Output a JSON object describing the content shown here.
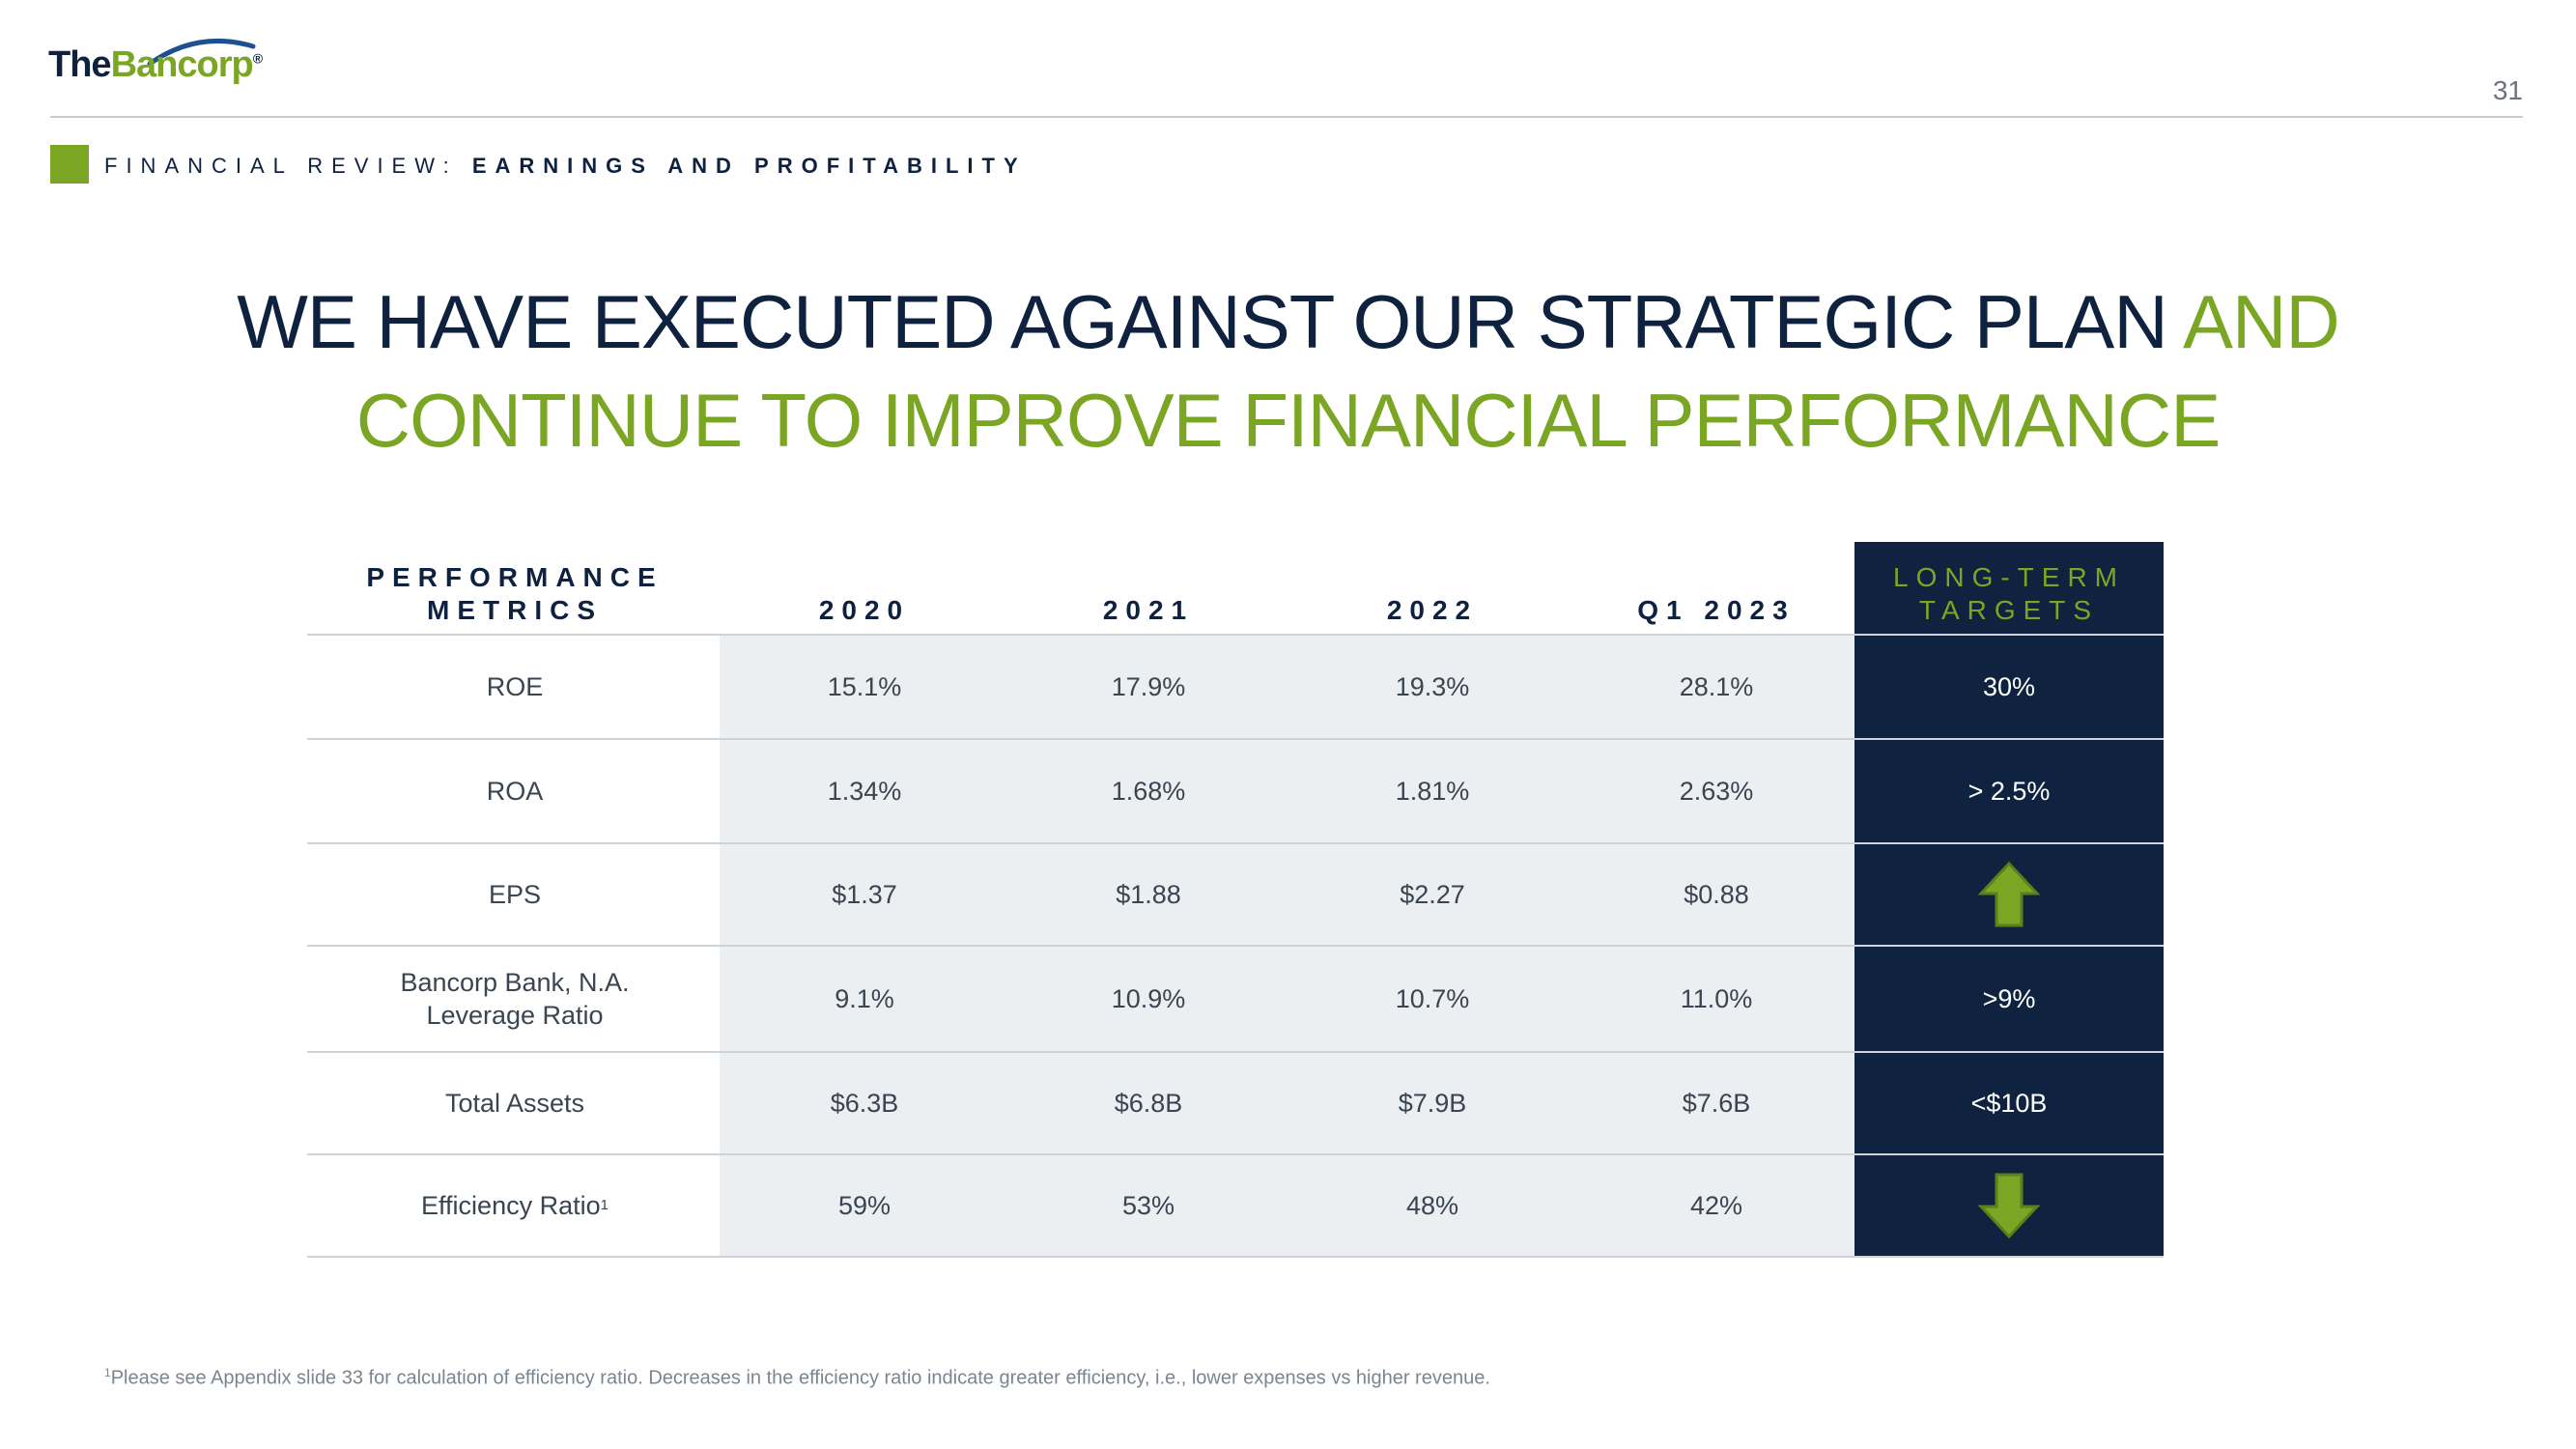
{
  "brand": {
    "logo_the": "The",
    "logo_bancorp": "Bancorp",
    "logo_mark": "®"
  },
  "page_number": "31",
  "section": {
    "prefix": "FINANCIAL REVIEW:",
    "title": "EARNINGS AND PROFITABILITY"
  },
  "headline": {
    "line1_navy": "WE HAVE EXECUTED AGAINST OUR STRATEGIC PLAN ",
    "line1_green": "AND",
    "line2_green": "CONTINUE TO IMPROVE FINANCIAL PERFORMANCE"
  },
  "colors": {
    "navy": "#0e2240",
    "green": "#7aa624",
    "grey_band": "#eceff1",
    "target_band": "#0f2340"
  },
  "table": {
    "header_metric_line1": "PERFORMANCE",
    "header_metric_line2": "METRICS",
    "columns": [
      "2020",
      "2021",
      "2022",
      "Q1 2023"
    ],
    "header_target_line1": "LONG-TERM",
    "header_target_line2": "TARGETS",
    "rows": [
      {
        "metric_line1": "ROE",
        "metric_line2": "",
        "footnote_mark": "",
        "values": [
          "15.1%",
          "17.9%",
          "19.3%",
          "28.1%"
        ],
        "target": "30%",
        "target_icon": ""
      },
      {
        "metric_line1": "ROA",
        "metric_line2": "",
        "footnote_mark": "",
        "values": [
          "1.34%",
          "1.68%",
          "1.81%",
          "2.63%"
        ],
        "target": "> 2.5%",
        "target_icon": ""
      },
      {
        "metric_line1": "EPS",
        "metric_line2": "",
        "footnote_mark": "",
        "values": [
          "$1.37",
          "$1.88",
          "$2.27",
          "$0.88"
        ],
        "target": "",
        "target_icon": "arrow-up-icon"
      },
      {
        "metric_line1": "Bancorp Bank, N.A.",
        "metric_line2": "Leverage Ratio",
        "footnote_mark": "",
        "values": [
          "9.1%",
          "10.9%",
          "10.7%",
          "11.0%"
        ],
        "target": ">9%",
        "target_icon": ""
      },
      {
        "metric_line1": "Total Assets",
        "metric_line2": "",
        "footnote_mark": "",
        "values": [
          "$6.3B",
          "$6.8B",
          "$7.9B",
          "$7.6B"
        ],
        "target": "<$10B",
        "target_icon": ""
      },
      {
        "metric_line1": "Efficiency Ratio",
        "metric_line2": "",
        "footnote_mark": "1",
        "values": [
          "59%",
          "53%",
          "48%",
          "42%"
        ],
        "target": "",
        "target_icon": "arrow-down-icon"
      }
    ]
  },
  "footnote": {
    "mark": "1",
    "text": "Please see Appendix slide 33 for calculation of efficiency ratio. Decreases in the efficiency ratio indicate greater efficiency, i.e., lower expenses vs higher revenue."
  }
}
